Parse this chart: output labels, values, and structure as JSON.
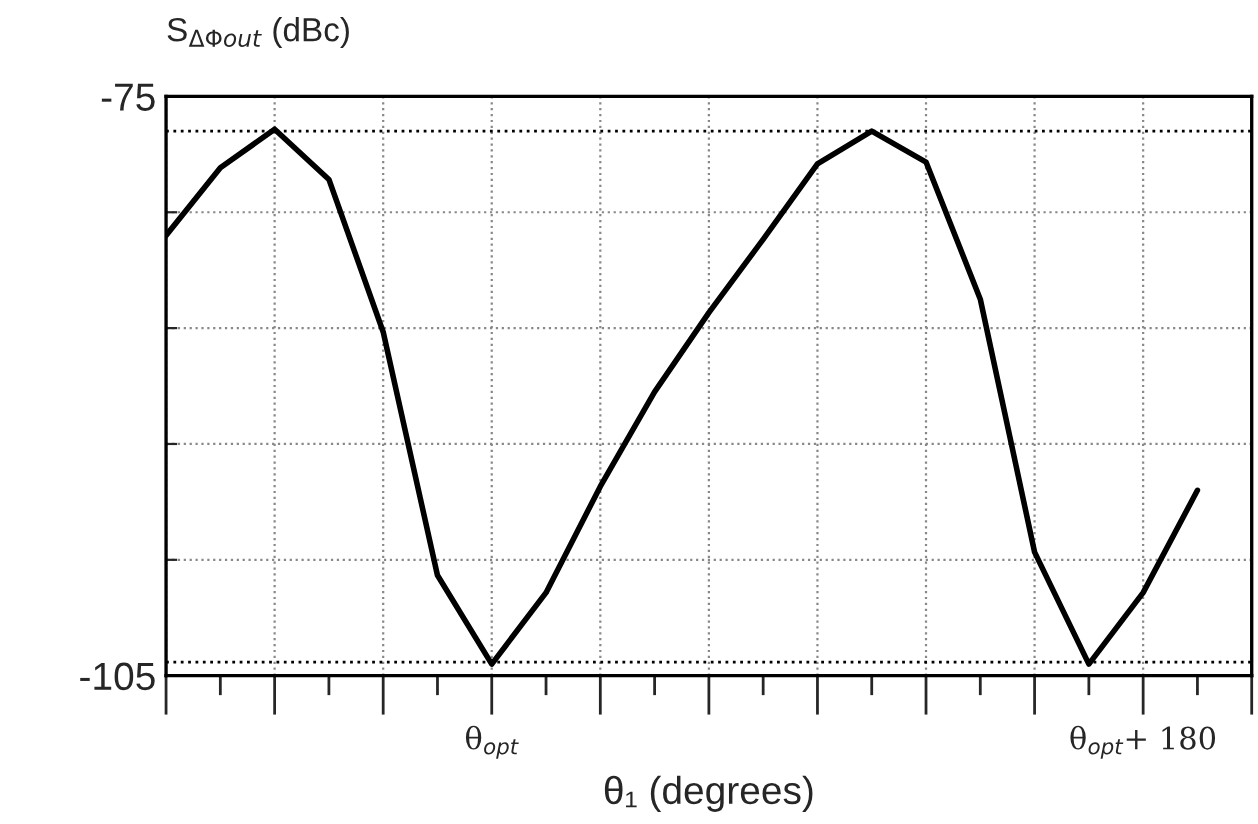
{
  "chart_data": {
    "type": "line",
    "xlabel": "θ₁ (degrees)",
    "ylabel": "S$_{ΔΦout}$ (dBc)",
    "categories": [
      null,
      null,
      null,
      null,
      null,
      null,
      "θ$_{opt}$",
      null,
      null,
      null,
      null,
      null,
      null,
      null,
      null,
      null,
      null,
      null,
      "θ$_{opt}$+ 180",
      null,
      null
    ],
    "ylim": [
      -105,
      -75
    ],
    "yticks": [
      -105,
      {
        "value": -99,
        "label": null
      },
      {
        "value": -93,
        "label": null
      },
      {
        "value": -87,
        "label": null
      },
      {
        "value": -81,
        "label": null
      },
      -75
    ],
    "grid": true,
    "series": [
      {
        "color": "#000000",
        "values": [
          -82.2,
          -78.7,
          -76.7,
          -79.3,
          -87.2,
          -99.8,
          -104.4,
          -100.7,
          -95.2,
          -90.3,
          -86.2,
          -82.4,
          -78.5,
          -76.8,
          -78.4,
          -85.5,
          -98.6,
          -104.4,
          -100.7,
          -95.4,
          null
        ]
      }
    ],
    "ref_lines": [
      {
        "axis": "y",
        "value": -76.8,
        "label": null,
        "color": "#000000",
        "line_style": "dotted"
      },
      {
        "axis": "y",
        "value": -104.3,
        "label": null,
        "color": "#000000",
        "line_style": "dotted"
      }
    ]
  }
}
